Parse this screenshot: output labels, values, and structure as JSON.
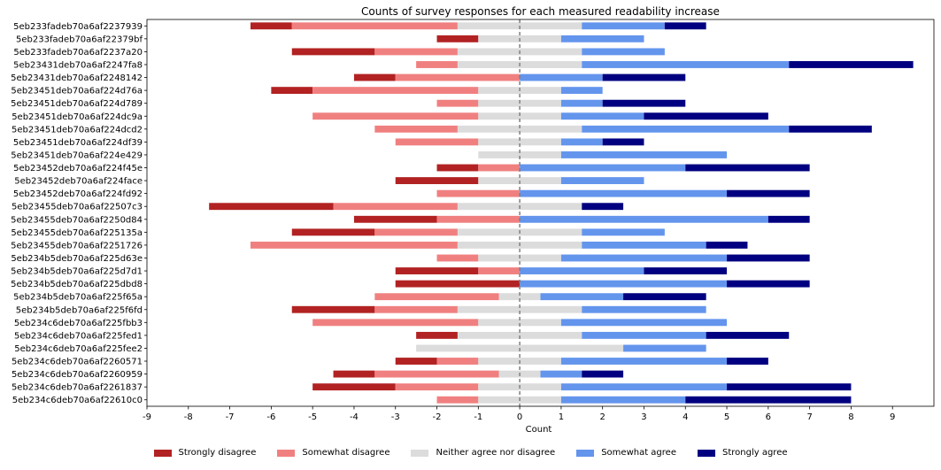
{
  "chart_data": {
    "type": "bar",
    "orientation": "horizontal-diverging-stacked",
    "title": "Counts of survey responses for each measured readability increase",
    "xlabel": "Count",
    "ylabel": "",
    "xlim": [
      -9,
      10
    ],
    "xticks": [
      -9,
      -8,
      -7,
      -6,
      -5,
      -4,
      -3,
      -2,
      -1,
      0,
      1,
      2,
      3,
      4,
      5,
      6,
      7,
      8,
      9
    ],
    "grid": false,
    "legend_position": "bottom-center",
    "center_line": 0,
    "categories": [
      "5eb233fadeb70a6af2237939",
      "5eb233fadeb70a6af22379bf",
      "5eb233fadeb70a6af2237a20",
      "5eb23431deb70a6af2247fa8",
      "5eb23431deb70a6af2248142",
      "5eb23451deb70a6af224d76a",
      "5eb23451deb70a6af224d789",
      "5eb23451deb70a6af224dc9a",
      "5eb23451deb70a6af224dcd2",
      "5eb23451deb70a6af224df39",
      "5eb23451deb70a6af224e429",
      "5eb23452deb70a6af224f45e",
      "5eb23452deb70a6af224face",
      "5eb23452deb70a6af224fd92",
      "5eb23455deb70a6af22507c3",
      "5eb23455deb70a6af2250d84",
      "5eb23455deb70a6af225135a",
      "5eb23455deb70a6af2251726",
      "5eb234b5deb70a6af225d63e",
      "5eb234b5deb70a6af225d7d1",
      "5eb234b5deb70a6af225dbd8",
      "5eb234b5deb70a6af225f65a",
      "5eb234b5deb70a6af225f6fd",
      "5eb234c6deb70a6af225fbb3",
      "5eb234c6deb70a6af225fed1",
      "5eb234c6deb70a6af225fee2",
      "5eb234c6deb70a6af2260571",
      "5eb234c6deb70a6af2260959",
      "5eb234c6deb70a6af2261837",
      "5eb234c6deb70a6af22610c0"
    ],
    "series": [
      {
        "name": "Strongly disagree",
        "color": "#b22222",
        "values": [
          1,
          1,
          2,
          0,
          1,
          1,
          0,
          0,
          0,
          0,
          0,
          1,
          2,
          0,
          3,
          2,
          2,
          0,
          0,
          2,
          3,
          0,
          2,
          0,
          1,
          0,
          1,
          1,
          2,
          0
        ]
      },
      {
        "name": "Somewhat disagree",
        "color": "#f08080",
        "values": [
          4,
          0,
          2,
          1,
          3,
          4,
          1,
          4,
          2,
          2,
          0,
          1,
          0,
          2,
          3,
          2,
          2,
          5,
          1,
          1,
          0,
          3,
          2,
          4,
          0,
          0,
          1,
          3,
          2,
          1
        ]
      },
      {
        "name": "Neither agree nor disagree",
        "color": "#dcdcdc",
        "values": [
          3,
          2,
          3,
          3,
          0,
          2,
          2,
          2,
          3,
          2,
          2,
          0,
          2,
          0,
          3,
          0,
          3,
          3,
          2,
          0,
          0,
          1,
          3,
          2,
          3,
          5,
          2,
          1,
          2,
          2
        ]
      },
      {
        "name": "Somewhat agree",
        "color": "#6495ed",
        "values": [
          2,
          2,
          2,
          5,
          2,
          1,
          1,
          2,
          5,
          1,
          4,
          4,
          2,
          5,
          0,
          6,
          2,
          3,
          4,
          3,
          5,
          2,
          3,
          4,
          3,
          2,
          4,
          1,
          4,
          3
        ]
      },
      {
        "name": "Strongly agree",
        "color": "#000080",
        "values": [
          1,
          0,
          0,
          3,
          2,
          0,
          2,
          3,
          2,
          1,
          0,
          3,
          0,
          2,
          1,
          1,
          0,
          1,
          2,
          2,
          2,
          2,
          0,
          0,
          2,
          0,
          1,
          1,
          3,
          4
        ]
      }
    ]
  }
}
